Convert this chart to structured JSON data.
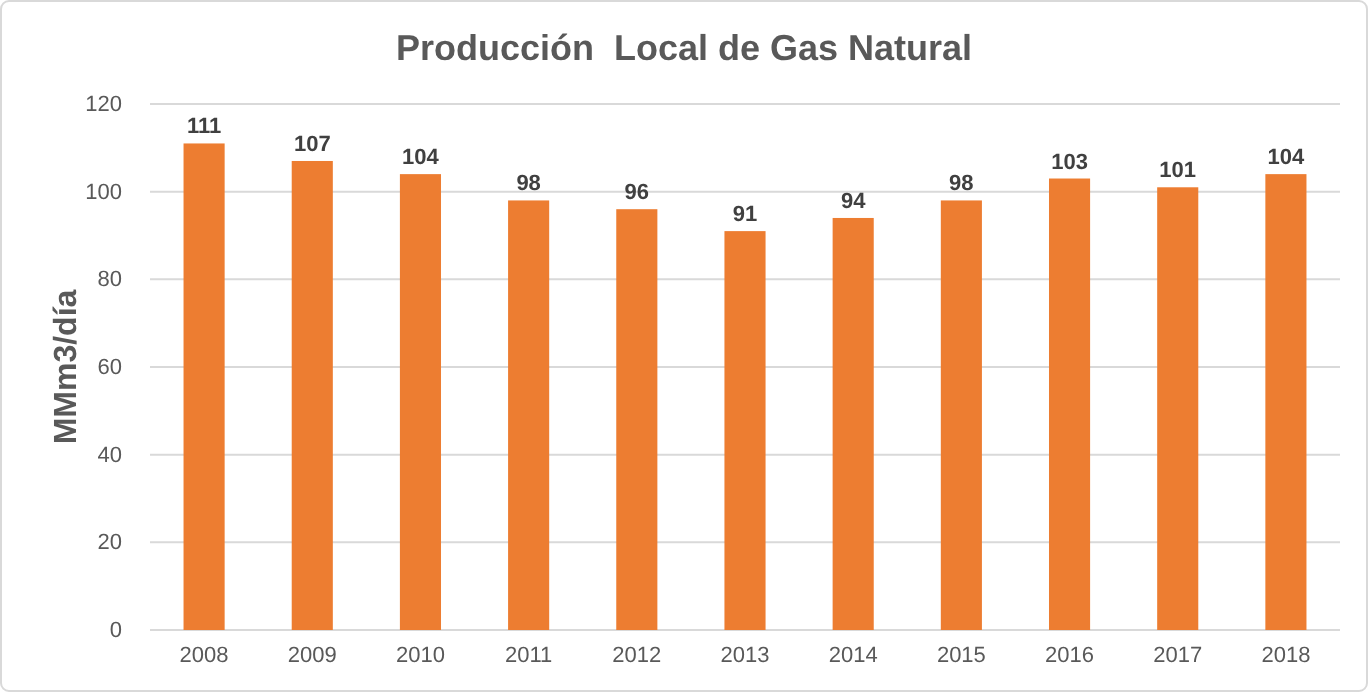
{
  "chart_data": {
    "type": "bar",
    "title": "Producción  Local de Gas Natural",
    "ylabel": "MMm3/día",
    "categories": [
      "2008",
      "2009",
      "2010",
      "2011",
      "2012",
      "2013",
      "2014",
      "2015",
      "2016",
      "2017",
      "2018"
    ],
    "values": [
      111,
      107,
      104,
      98,
      96,
      91,
      94,
      98,
      103,
      101,
      104
    ],
    "color": "#ed7d31",
    "ylim": [
      0,
      120
    ],
    "yticks": [
      0,
      20,
      40,
      60,
      80,
      100,
      120
    ],
    "grid": "y",
    "data_labels": true
  }
}
